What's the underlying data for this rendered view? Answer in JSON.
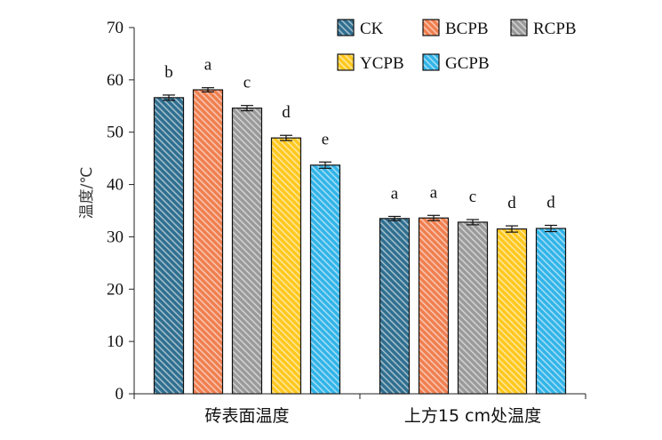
{
  "chart_data": {
    "type": "bar",
    "ylabel": "温度/℃",
    "ylim": [
      0,
      70
    ],
    "yticks": [
      0,
      10,
      20,
      30,
      40,
      50,
      60,
      70
    ],
    "categories": [
      "砖表面温度",
      "上方15 cm处温度"
    ],
    "legend_position": "top-right",
    "series": [
      {
        "name": "CK",
        "color": "#2f6e8f",
        "values": [
          56.6,
          33.5
        ],
        "errors": [
          0.5,
          0.4
        ],
        "letters": [
          "b",
          "a"
        ]
      },
      {
        "name": "BCPB",
        "color": "#f07f4f",
        "values": [
          58.1,
          33.6
        ],
        "errors": [
          0.4,
          0.5
        ],
        "letters": [
          "a",
          "a"
        ]
      },
      {
        "name": "RCPB",
        "color": "#9a9a9a",
        "values": [
          54.6,
          32.8
        ],
        "errors": [
          0.5,
          0.5
        ],
        "letters": [
          "c",
          "c"
        ]
      },
      {
        "name": "YCPB",
        "color": "#ffc81e",
        "values": [
          48.9,
          31.5
        ],
        "errors": [
          0.5,
          0.6
        ],
        "letters": [
          "d",
          "d"
        ]
      },
      {
        "name": "GCPB",
        "color": "#31b4e8",
        "values": [
          43.7,
          31.6
        ],
        "errors": [
          0.6,
          0.6
        ],
        "letters": [
          "e",
          "d"
        ]
      }
    ]
  }
}
